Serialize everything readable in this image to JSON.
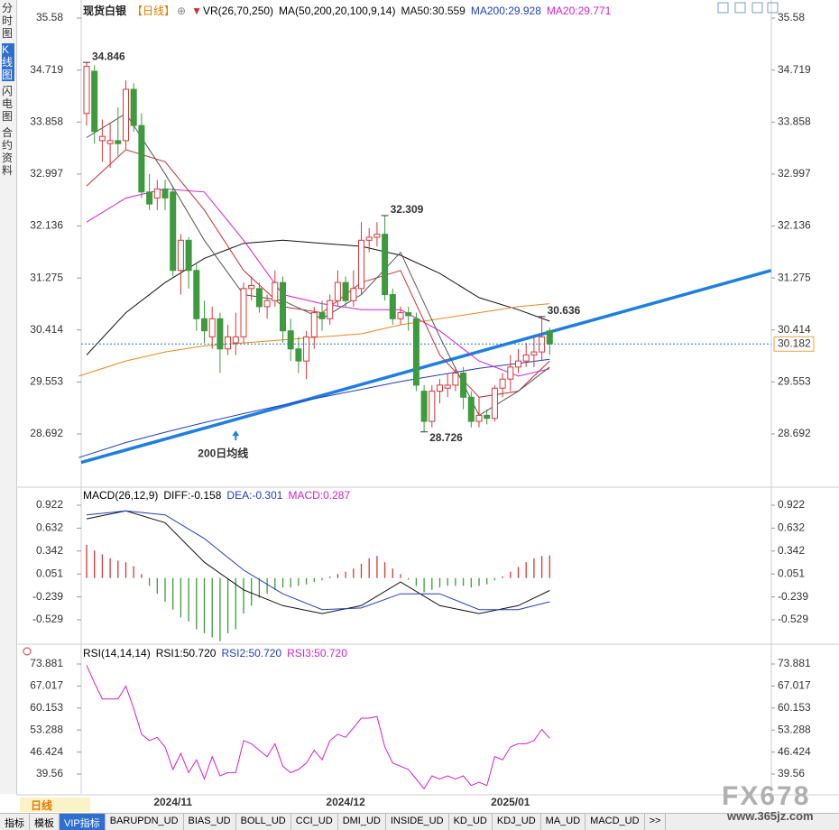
{
  "ui": {
    "sidebar": [
      "分时图",
      "K线图",
      "闪电图",
      "合约资料"
    ],
    "period_tag": "日线",
    "tabs": [
      "指标",
      "模板",
      "VIP指标",
      "BARUPDN_UD",
      "BIAS_UD",
      "BOLL_UD",
      "CCI_UD",
      "DMI_UD",
      "INSIDE_UD",
      "KD_UD",
      "KDJ_UD",
      "MA_UD",
      "MACD_UD",
      ">>"
    ],
    "watermark": "FX678",
    "watermark_url": "www.365jz.com"
  },
  "chart_data": [
    {
      "type": "candlestick",
      "title": "现货白银",
      "period": "【日线】",
      "indicator": "VR(26,70,250)",
      "ma_label": "MA(50,200,20,100,9,14)",
      "up_color": "#d8363a",
      "down_color": "#3d9a3d",
      "categories": [
        null,
        null,
        null,
        null,
        null,
        null,
        null,
        null,
        null,
        null,
        null,
        "2024/11",
        null,
        null,
        null,
        null,
        null,
        null,
        null,
        null,
        null,
        null,
        null,
        null,
        null,
        null,
        null,
        null,
        null,
        null,
        null,
        null,
        null,
        "2024/12",
        null,
        null,
        null,
        null,
        null,
        null,
        null,
        null,
        null,
        null,
        null,
        null,
        null,
        null,
        null,
        null,
        null,
        null,
        null,
        null,
        "2025/01",
        null,
        null,
        null,
        null,
        null
      ],
      "open": [
        34.0,
        34.7,
        33.55,
        33.5,
        33.55,
        33.55,
        34.4,
        33.8,
        32.7,
        32.6,
        32.75,
        32.7,
        31.4,
        31.9,
        31.4,
        30.6,
        30.3,
        30.6,
        30.1,
        30.2,
        30.3,
        31.1,
        31.1,
        30.8,
        30.9,
        31.2,
        30.4,
        30.1,
        29.9,
        30.3,
        30.7,
        30.6,
        30.9,
        31.2,
        30.9,
        31.1,
        31.9,
        31.95,
        32.0,
        31.0,
        30.6,
        30.7,
        30.6,
        29.4,
        28.9,
        29.4,
        29.45,
        29.5,
        29.7,
        29.3,
        28.9,
        29.0,
        28.95,
        29.45,
        29.6,
        29.8,
        29.9,
        30.0,
        30.05,
        30.4
      ],
      "high": [
        34.846,
        34.8,
        33.9,
        33.85,
        34.1,
        34.55,
        34.5,
        34.0,
        33.0,
        32.9,
        32.9,
        32.8,
        32.0,
        31.95,
        31.5,
        30.9,
        30.8,
        30.7,
        30.5,
        30.7,
        31.2,
        31.3,
        31.2,
        31.0,
        31.4,
        31.3,
        30.6,
        30.3,
        30.4,
        30.8,
        30.9,
        31.0,
        31.4,
        31.3,
        31.4,
        32.2,
        32.1,
        32.2,
        32.309,
        31.1,
        30.8,
        30.8,
        30.7,
        29.5,
        29.5,
        29.6,
        29.7,
        29.8,
        29.8,
        29.4,
        29.3,
        29.1,
        29.5,
        29.7,
        30.0,
        30.1,
        30.2,
        30.3,
        30.636,
        30.45
      ],
      "low": [
        33.8,
        33.5,
        33.2,
        33.1,
        33.3,
        33.4,
        33.7,
        32.6,
        32.4,
        32.4,
        32.4,
        31.3,
        31.0,
        31.1,
        30.4,
        30.2,
        30.1,
        29.7,
        30.0,
        30.0,
        30.2,
        30.9,
        30.7,
        30.6,
        30.8,
        30.2,
        29.9,
        29.7,
        29.6,
        30.1,
        30.4,
        30.5,
        30.8,
        30.8,
        30.8,
        31.0,
        31.7,
        31.8,
        30.9,
        30.5,
        30.5,
        30.4,
        29.4,
        28.726,
        28.8,
        29.2,
        29.3,
        29.4,
        29.1,
        28.8,
        28.8,
        28.85,
        28.9,
        29.3,
        29.4,
        29.7,
        29.8,
        29.8,
        29.9,
        30.0
      ],
      "close": [
        34.78,
        33.7,
        33.62,
        33.55,
        33.5,
        34.4,
        33.8,
        32.7,
        32.5,
        32.75,
        32.6,
        31.4,
        31.9,
        31.4,
        30.6,
        30.4,
        30.6,
        30.1,
        30.3,
        30.3,
        31.1,
        31.15,
        30.8,
        30.9,
        31.2,
        30.4,
        30.1,
        29.9,
        30.3,
        30.7,
        30.6,
        30.9,
        31.2,
        30.9,
        31.1,
        31.9,
        31.95,
        32.0,
        31.0,
        30.6,
        30.7,
        30.65,
        29.5,
        28.9,
        29.4,
        29.5,
        29.5,
        29.7,
        29.3,
        28.9,
        29.0,
        28.95,
        29.45,
        29.6,
        29.8,
        29.9,
        30.0,
        30.05,
        30.3,
        30.182
      ],
      "series": [
        {
          "name": "MA50:30.559",
          "color": "#111111",
          "x": [
            0,
            5,
            10,
            15,
            20,
            25,
            30,
            35,
            40,
            45,
            50,
            55,
            59
          ],
          "values": [
            30.0,
            30.7,
            31.2,
            31.6,
            31.85,
            31.9,
            31.85,
            31.8,
            31.65,
            31.35,
            30.95,
            30.75,
            30.559
          ]
        },
        {
          "name": "MA200:29.928",
          "color": "#1f3fbf",
          "x": [
            -1,
            5,
            10,
            15,
            20,
            25,
            30,
            35,
            40,
            45,
            50,
            55,
            59
          ],
          "values": [
            28.3,
            28.55,
            28.72,
            28.88,
            29.03,
            29.17,
            29.3,
            29.43,
            29.56,
            29.67,
            29.78,
            29.86,
            29.928
          ]
        },
        {
          "name": "MA20:29.771",
          "color": "#d21fd2",
          "x": [
            0,
            5,
            10,
            15,
            20,
            25,
            30,
            35,
            40,
            45,
            50,
            55,
            59
          ],
          "values": [
            32.2,
            32.6,
            32.75,
            32.7,
            31.9,
            31.0,
            30.85,
            30.75,
            30.75,
            30.4,
            29.9,
            29.65,
            29.771
          ]
        },
        {
          "color": "#e88a1a",
          "x": [
            -1,
            5,
            10,
            15,
            20,
            25,
            30,
            35,
            40,
            45,
            50,
            55,
            59
          ],
          "values": [
            29.65,
            29.9,
            30.05,
            30.15,
            30.2,
            30.25,
            30.3,
            30.35,
            30.5,
            30.6,
            30.7,
            30.8,
            30.85
          ]
        },
        {
          "color": "#c83030",
          "x": [
            0,
            5,
            10,
            15,
            20,
            25,
            30,
            35,
            40,
            45,
            50,
            55,
            59
          ],
          "values": [
            32.8,
            33.4,
            33.2,
            32.4,
            31.4,
            30.8,
            30.7,
            31.2,
            31.4,
            30.0,
            29.3,
            29.4,
            29.9
          ]
        },
        {
          "color": "#555555",
          "x": [
            0,
            5,
            10,
            15,
            20,
            25,
            30,
            35,
            40,
            45,
            50,
            55,
            59
          ],
          "values": [
            33.6,
            34.0,
            33.0,
            31.9,
            31.0,
            30.9,
            30.6,
            31.0,
            31.7,
            30.3,
            29.0,
            29.4,
            29.8
          ]
        }
      ],
      "trendline": {
        "color": "#1e7fe0",
        "x": [
          -0.7,
          87.2
        ],
        "values": [
          28.22,
          31.4
        ]
      },
      "annotations": [
        {
          "x": 0,
          "value": 34.846,
          "color": "#d04040"
        },
        {
          "x": 38,
          "value": 32.309,
          "color": "#d04040"
        },
        {
          "x": 43,
          "value": 28.726,
          "color": "#3d9a3d"
        },
        {
          "x": 58,
          "value": 30.636,
          "color": "#d04040"
        }
      ],
      "note": {
        "text": "200日均线",
        "x": 19,
        "value": 28.75
      },
      "last": 30.182,
      "ylim": [
        27.84,
        35.76
      ],
      "yticks": [
        35.58,
        34.719,
        33.858,
        32.997,
        32.136,
        31.275,
        30.414,
        29.553,
        28.692
      ]
    },
    {
      "type": "macd",
      "title": "MACD(26,12,9)",
      "legend": [
        "DIFF:-0.158",
        "DEA:-0.301",
        "MACD:0.287"
      ],
      "values": [
        0.42,
        0.35,
        0.3,
        0.25,
        0.22,
        0.2,
        0.15,
        0.05,
        -0.1,
        -0.2,
        -0.3,
        -0.4,
        -0.5,
        -0.55,
        -0.65,
        -0.7,
        -0.75,
        -0.8,
        -0.7,
        -0.65,
        -0.45,
        -0.35,
        -0.25,
        -0.2,
        -0.15,
        -0.12,
        -0.12,
        -0.1,
        -0.08,
        -0.05,
        -0.03,
        0.02,
        0.05,
        0.08,
        0.12,
        0.18,
        0.25,
        0.28,
        0.2,
        0.12,
        0.05,
        -0.02,
        -0.1,
        -0.18,
        -0.15,
        -0.12,
        -0.1,
        -0.1,
        -0.1,
        -0.12,
        -0.1,
        -0.08,
        -0.03,
        0.02,
        0.08,
        0.14,
        0.2,
        0.25,
        0.28,
        0.287
      ],
      "up_color": "#d8363a",
      "down_color": "#3d9a3d",
      "series": [
        {
          "color": "#111111",
          "x": [
            0,
            5,
            10,
            15,
            20,
            25,
            30,
            35,
            40,
            45,
            50,
            55,
            59
          ],
          "values": [
            0.75,
            0.85,
            0.7,
            0.2,
            -0.15,
            -0.35,
            -0.45,
            -0.35,
            -0.05,
            -0.35,
            -0.45,
            -0.35,
            -0.158
          ]
        },
        {
          "color": "#1f3fbf",
          "x": [
            0,
            5,
            10,
            15,
            20,
            25,
            30,
            35,
            40,
            45,
            50,
            55,
            59
          ],
          "values": [
            0.8,
            0.85,
            0.8,
            0.5,
            0.1,
            -0.2,
            -0.4,
            -0.38,
            -0.2,
            -0.2,
            -0.4,
            -0.4,
            -0.301
          ]
        }
      ],
      "ylim": [
        -0.815,
        1.128
      ],
      "yticks": [
        0.922,
        0.632,
        0.342,
        0.051,
        -0.239,
        -0.529
      ]
    },
    {
      "type": "line",
      "title": "RSI(14,14,14)",
      "legend": [
        "RSI1:50.720",
        "RSI2:50.720",
        "RSI3:50.720"
      ],
      "series": [
        {
          "color": "#d21fd2",
          "values": [
            73.5,
            68,
            63,
            63,
            63,
            67,
            60,
            52,
            50,
            51,
            48,
            41,
            46,
            40,
            44,
            38,
            45,
            39,
            40,
            40,
            50,
            49,
            47,
            45,
            49,
            42,
            40,
            41,
            43,
            47,
            44,
            50,
            52,
            51,
            54,
            57,
            57,
            57.5,
            48,
            43,
            42,
            41,
            38,
            35,
            39,
            38,
            39,
            38,
            39,
            36,
            37,
            36,
            45,
            44,
            48,
            49,
            49,
            50,
            53.5,
            50.72
          ]
        }
      ],
      "ylim": [
        33.37,
        79.51
      ],
      "yticks": [
        73.881,
        67.017,
        60.153,
        53.288,
        46.424,
        39.56
      ]
    }
  ]
}
